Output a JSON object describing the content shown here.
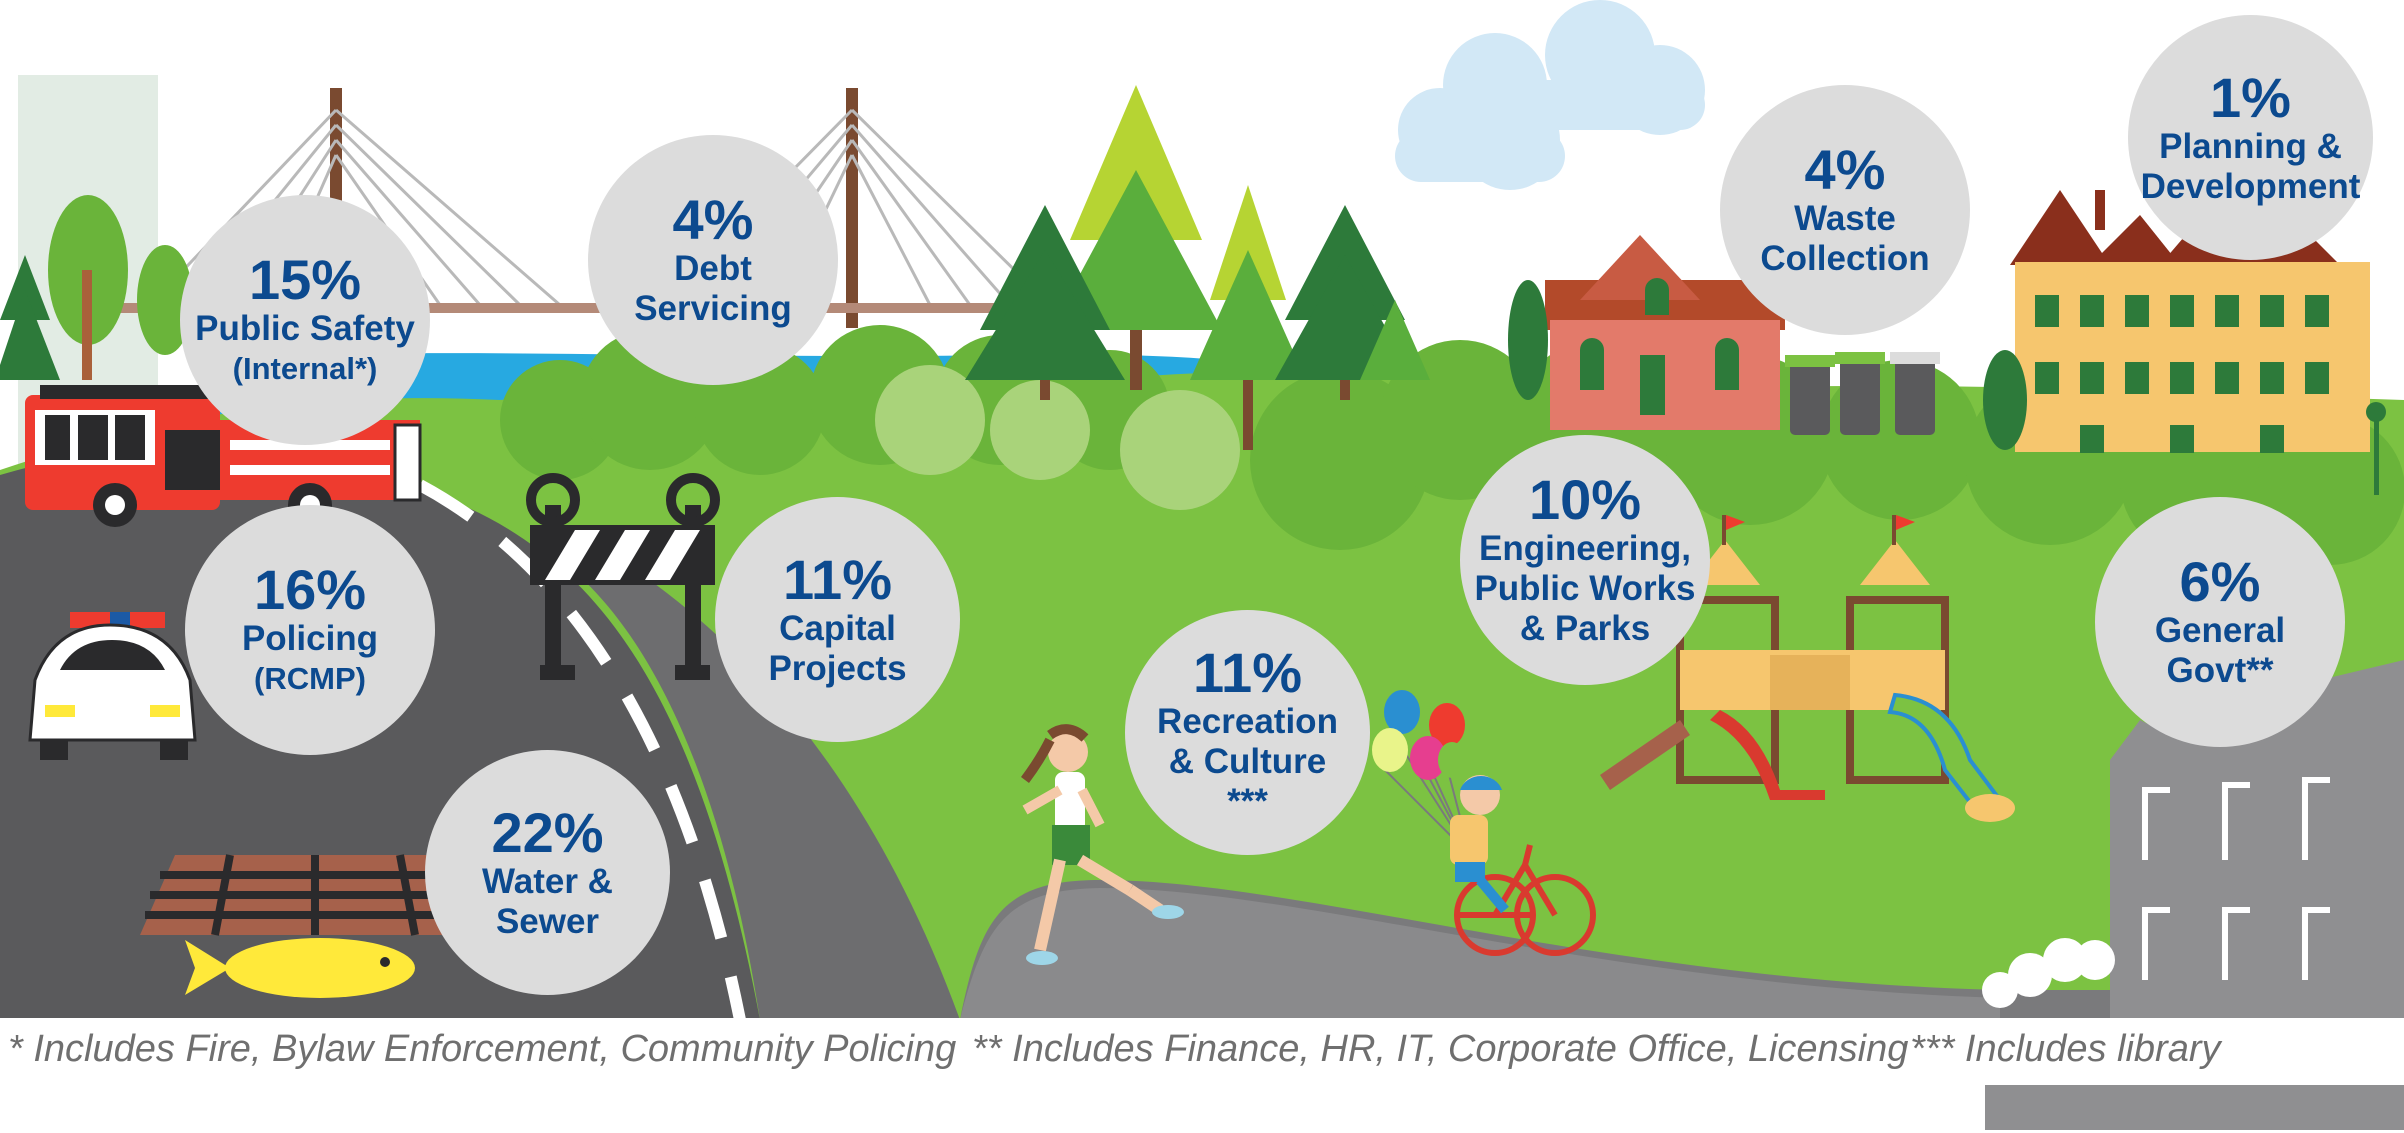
{
  "categories": [
    {
      "id": "public-safety",
      "percent": "15%",
      "lines": [
        "Public Safety"
      ],
      "sub": "(Internal*)"
    },
    {
      "id": "debt-servicing",
      "percent": "4%",
      "lines": [
        "Debt",
        "Servicing"
      ],
      "sub": ""
    },
    {
      "id": "policing",
      "percent": "16%",
      "lines": [
        "Policing"
      ],
      "sub": "(RCMP)"
    },
    {
      "id": "capital-projects",
      "percent": "11%",
      "lines": [
        "Capital",
        "Projects"
      ],
      "sub": ""
    },
    {
      "id": "water-sewer",
      "percent": "22%",
      "lines": [
        "Water &",
        "Sewer"
      ],
      "sub": ""
    },
    {
      "id": "recreation-culture",
      "percent": "11%",
      "lines": [
        "Recreation",
        "& Culture"
      ],
      "sub": "***"
    },
    {
      "id": "engineering",
      "percent": "10%",
      "lines": [
        "Engineering,",
        "Public Works",
        "& Parks"
      ],
      "sub": ""
    },
    {
      "id": "waste-collection",
      "percent": "4%",
      "lines": [
        "Waste",
        "Collection"
      ],
      "sub": ""
    },
    {
      "id": "planning",
      "percent": "1%",
      "lines": [
        "Planning &",
        "Development"
      ],
      "sub": ""
    },
    {
      "id": "general-govt",
      "percent": "6%",
      "lines": [
        "General",
        "Govt**"
      ],
      "sub": ""
    }
  ],
  "footnotes": {
    "note1": "*  Includes Fire, Bylaw Enforcement, Community Policing",
    "note2": "** Includes Finance, HR, IT, Corporate Office, Licensing",
    "note3": "*** Includes library"
  },
  "colors": {
    "bubble_fill": "#dcdcdc",
    "bubble_text": "#0c4a8f",
    "grass": "#7cc242",
    "road": "#5a5a5c",
    "water": "#27a9e1",
    "footnote_text": "#6f6f6f"
  }
}
